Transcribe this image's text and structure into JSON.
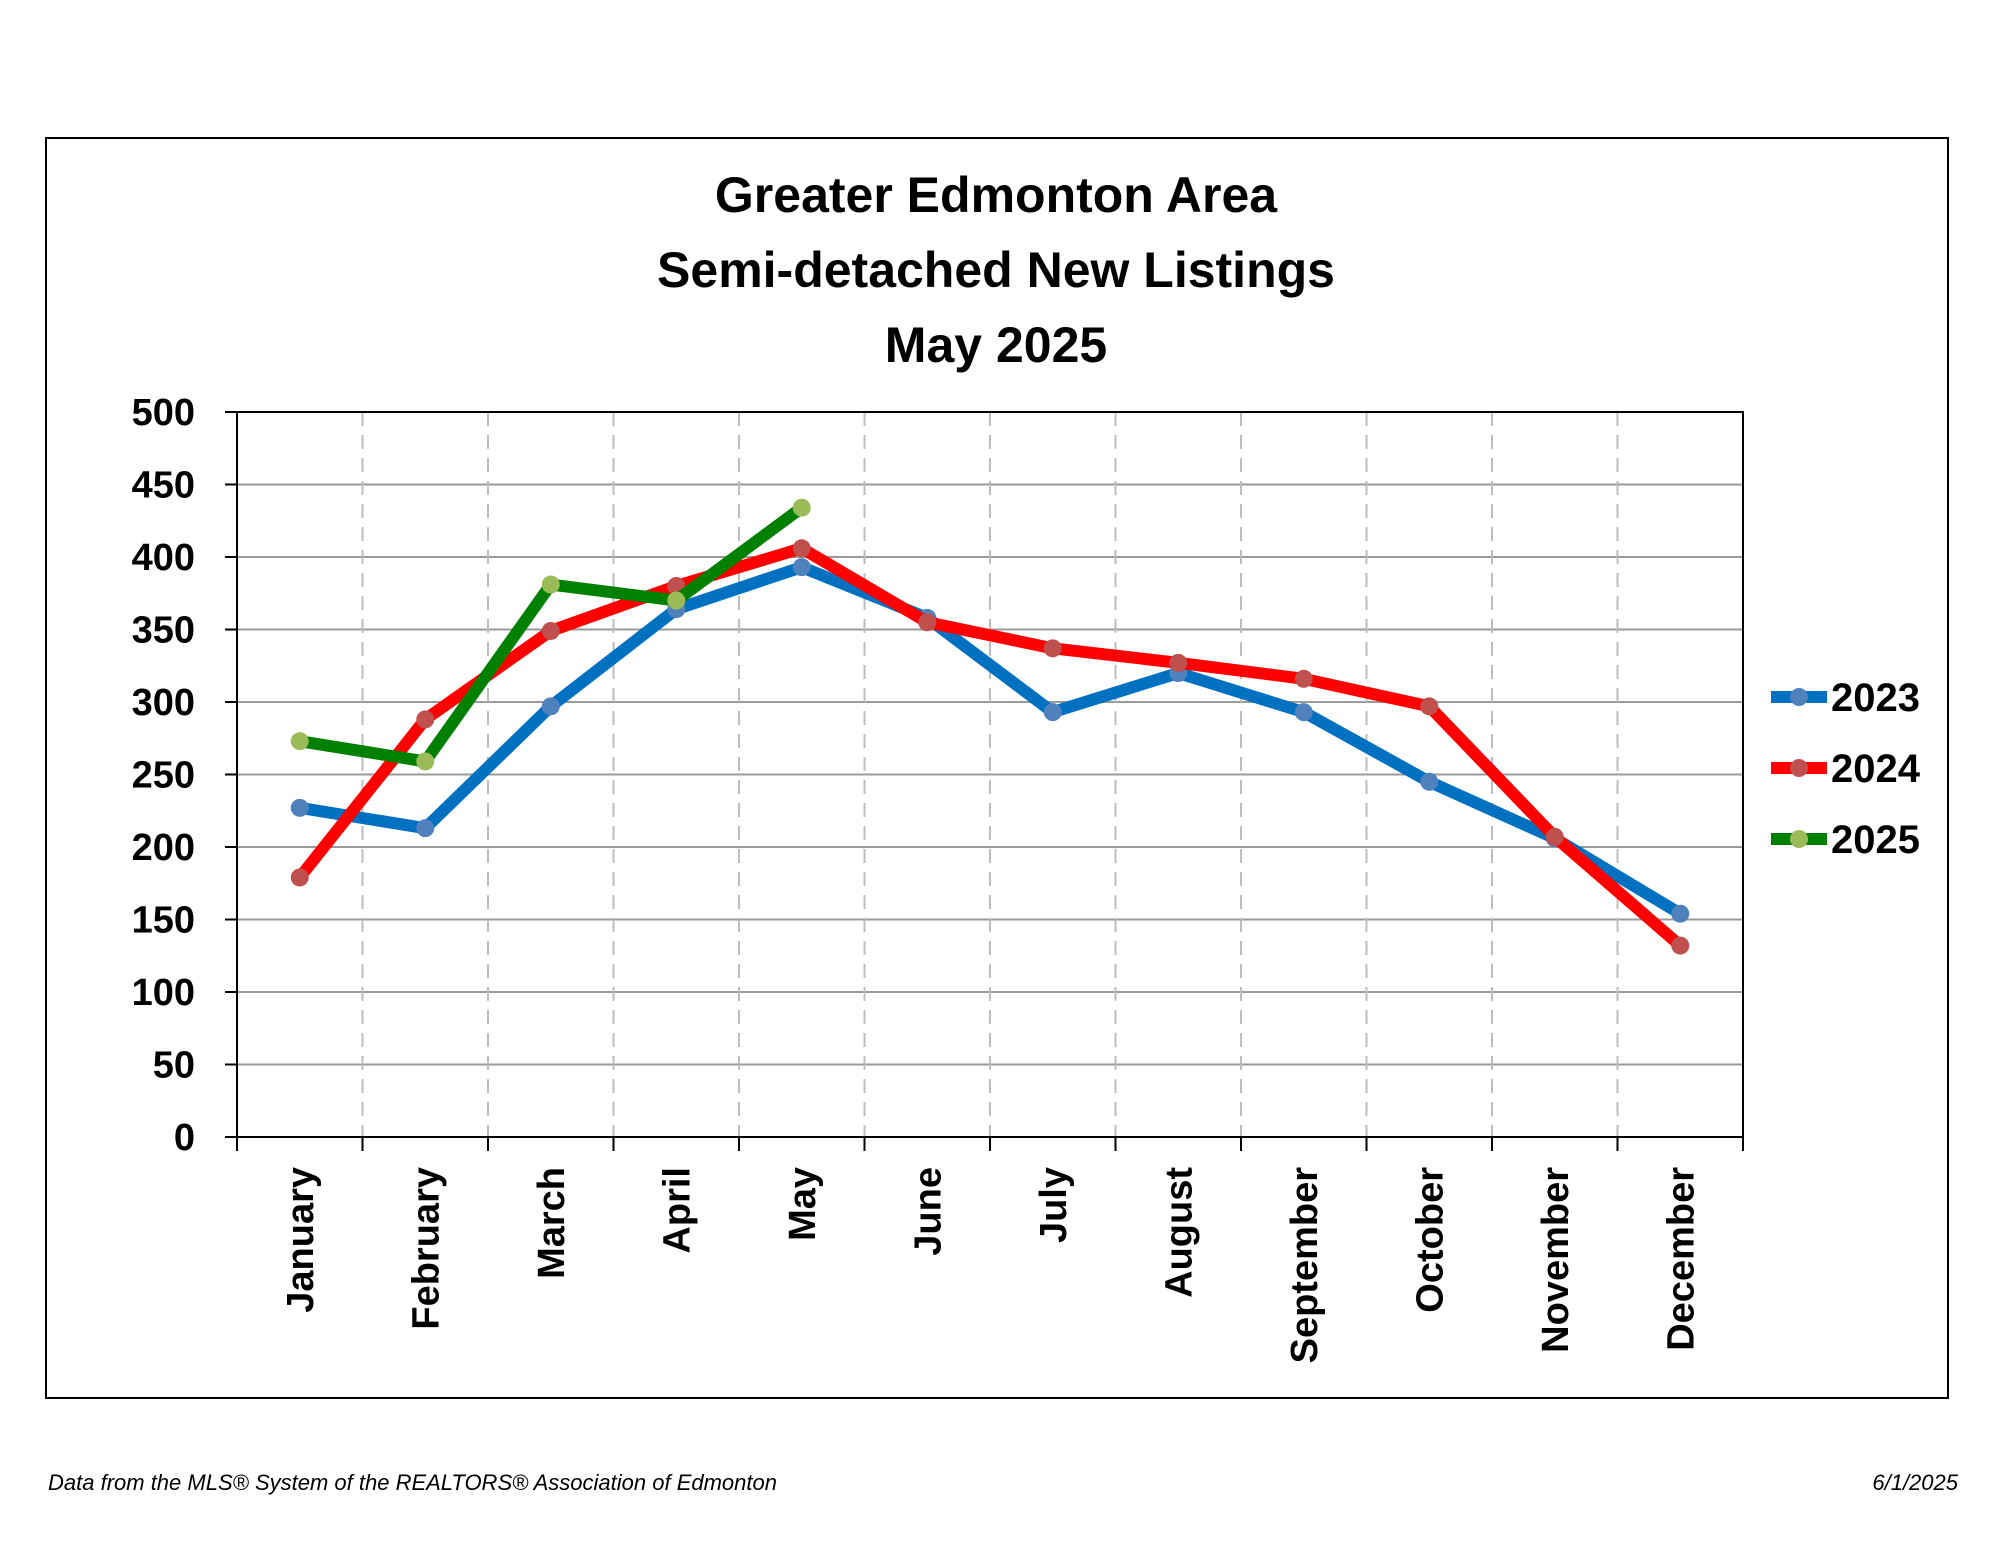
{
  "chart_data": {
    "type": "line",
    "title_lines": [
      "Greater Edmonton Area",
      "Semi-detached New Listings",
      "May 2025"
    ],
    "xlabel": "",
    "ylabel": "",
    "categories": [
      "January",
      "February",
      "March",
      "April",
      "May",
      "June",
      "July",
      "August",
      "September",
      "October",
      "November",
      "December"
    ],
    "ylim": [
      0,
      500
    ],
    "yticks": [
      "0",
      "50",
      "100",
      "150",
      "200",
      "250",
      "300",
      "350",
      "400",
      "450",
      "500"
    ],
    "grid": {
      "horizontal": "solid",
      "vertical": "dashed"
    },
    "legend_position": "right",
    "series": [
      {
        "name": "2023",
        "color": "#0070c0",
        "marker_color": "#4f81bd",
        "values": [
          227,
          213,
          297,
          364,
          393,
          358,
          293,
          320,
          293,
          245,
          206,
          154
        ]
      },
      {
        "name": "2024",
        "color": "#ff0000",
        "marker_color": "#c0504d",
        "values": [
          179,
          288,
          349,
          380,
          406,
          355,
          337,
          327,
          316,
          297,
          207,
          132
        ]
      },
      {
        "name": "2025",
        "color": "#008000",
        "marker_color": "#9bbb59",
        "values": [
          273,
          259,
          381,
          370,
          434,
          null,
          null,
          null,
          null,
          null,
          null,
          null
        ]
      }
    ]
  },
  "footer": {
    "source": "Data from the MLS® System of the REALTORS® Association of Edmonton",
    "date": "6/1/2025"
  }
}
